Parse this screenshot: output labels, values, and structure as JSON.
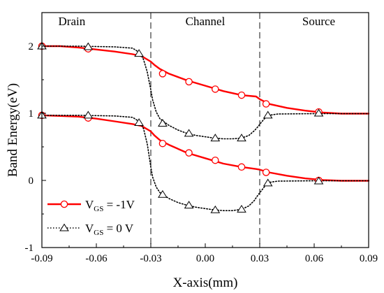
{
  "chart_data": {
    "type": "line",
    "title": "",
    "xlabel": "X-axis(mm)",
    "ylabel": "Band Energy(eV)",
    "xlim": [
      -0.09,
      0.09
    ],
    "ylim": [
      -1,
      2.5
    ],
    "xticks": [
      "-0.09",
      "-0.06",
      "-0.03",
      "0.00",
      "0.03",
      "0.06",
      "0.09"
    ],
    "yticks": [
      "-1",
      "0",
      "1",
      "2"
    ],
    "grid": false,
    "legend_position": "bottom-left",
    "regions": [
      {
        "label": "Drain",
        "x": -0.0735
      },
      {
        "label": "Channel",
        "x": 0.0
      },
      {
        "label": "Source",
        "x": 0.0625
      }
    ],
    "dividers": [
      -0.03,
      0.03
    ],
    "series": [
      {
        "name": "V_GS = -1V",
        "legend_main": "V",
        "legend_sub": "GS",
        "legend_rest": " = -1V",
        "color": "#ff0000",
        "marker": "circle",
        "line_style": "solid",
        "curves": [
          [
            [
              -0.09,
              2.0
            ],
            [
              -0.08,
              2.0
            ],
            [
              -0.07,
              1.98
            ],
            [
              -0.06,
              1.95
            ],
            [
              -0.05,
              1.92
            ],
            [
              -0.04,
              1.88
            ],
            [
              -0.035,
              1.85
            ],
            [
              -0.03,
              1.77
            ],
            [
              -0.028,
              1.72
            ],
            [
              -0.025,
              1.66
            ],
            [
              -0.02,
              1.59
            ],
            [
              -0.01,
              1.49
            ],
            [
              0.0,
              1.41
            ],
            [
              0.01,
              1.33
            ],
            [
              0.02,
              1.27
            ],
            [
              0.028,
              1.25
            ],
            [
              0.03,
              1.21
            ],
            [
              0.035,
              1.14
            ],
            [
              0.045,
              1.08
            ],
            [
              0.055,
              1.04
            ],
            [
              0.065,
              1.01
            ],
            [
              0.075,
              0.995
            ],
            [
              0.09,
              0.995
            ]
          ],
          [
            [
              -0.09,
              0.97
            ],
            [
              -0.08,
              0.96
            ],
            [
              -0.07,
              0.95
            ],
            [
              -0.06,
              0.92
            ],
            [
              -0.05,
              0.88
            ],
            [
              -0.04,
              0.84
            ],
            [
              -0.035,
              0.81
            ],
            [
              -0.03,
              0.73
            ],
            [
              -0.028,
              0.67
            ],
            [
              -0.025,
              0.6
            ],
            [
              -0.02,
              0.53
            ],
            [
              -0.01,
              0.41
            ],
            [
              0.0,
              0.33
            ],
            [
              0.01,
              0.25
            ],
            [
              0.02,
              0.2
            ],
            [
              0.028,
              0.17
            ],
            [
              0.03,
              0.16
            ],
            [
              0.035,
              0.12
            ],
            [
              0.045,
              0.07
            ],
            [
              0.055,
              0.03
            ],
            [
              0.065,
              0.005
            ],
            [
              0.075,
              -0.005
            ],
            [
              0.09,
              -0.005
            ]
          ]
        ],
        "markers": [
          [
            -0.09,
            2.0
          ],
          [
            -0.0645,
            1.96
          ],
          [
            -0.0235,
            1.59
          ],
          [
            -0.009,
            1.47
          ],
          [
            0.0055,
            1.36
          ],
          [
            0.02,
            1.27
          ],
          [
            0.0335,
            1.14
          ],
          [
            0.0625,
            1.02
          ],
          [
            -0.09,
            0.97
          ],
          [
            -0.0645,
            0.93
          ],
          [
            -0.0235,
            0.55
          ],
          [
            -0.009,
            0.41
          ],
          [
            0.0055,
            0.3
          ],
          [
            0.02,
            0.2
          ],
          [
            0.0335,
            0.12
          ],
          [
            0.0625,
            0.0
          ]
        ]
      },
      {
        "name": "V_GS = 0 V",
        "legend_main": "V",
        "legend_sub": "GS",
        "legend_rest": " = 0 V",
        "color": "#000000",
        "marker": "triangle",
        "line_style": "dotted",
        "curves": [
          [
            [
              -0.09,
              2.0
            ],
            [
              -0.07,
              2.0
            ],
            [
              -0.05,
              1.99
            ],
            [
              -0.04,
              1.97
            ],
            [
              -0.036,
              1.9
            ],
            [
              -0.034,
              1.8
            ],
            [
              -0.032,
              1.62
            ],
            [
              -0.03,
              1.35
            ],
            [
              -0.029,
              1.2
            ],
            [
              -0.027,
              1.02
            ],
            [
              -0.025,
              0.92
            ],
            [
              -0.02,
              0.82
            ],
            [
              -0.015,
              0.75
            ],
            [
              -0.01,
              0.7
            ],
            [
              -0.005,
              0.67
            ],
            [
              0.0,
              0.65
            ],
            [
              0.005,
              0.63
            ],
            [
              0.01,
              0.62
            ],
            [
              0.015,
              0.62
            ],
            [
              0.02,
              0.63
            ],
            [
              0.024,
              0.67
            ],
            [
              0.027,
              0.74
            ],
            [
              0.029,
              0.8
            ],
            [
              0.031,
              0.87
            ],
            [
              0.033,
              0.93
            ],
            [
              0.035,
              0.97
            ],
            [
              0.04,
              0.99
            ],
            [
              0.06,
              0.995
            ],
            [
              0.09,
              0.995
            ]
          ],
          [
            [
              -0.09,
              0.97
            ],
            [
              -0.07,
              0.97
            ],
            [
              -0.05,
              0.96
            ],
            [
              -0.04,
              0.94
            ],
            [
              -0.036,
              0.87
            ],
            [
              -0.034,
              0.77
            ],
            [
              -0.032,
              0.55
            ],
            [
              -0.03,
              0.2
            ],
            [
              -0.029,
              0.05
            ],
            [
              -0.027,
              -0.1
            ],
            [
              -0.025,
              -0.18
            ],
            [
              -0.02,
              -0.27
            ],
            [
              -0.015,
              -0.33
            ],
            [
              -0.01,
              -0.37
            ],
            [
              -0.005,
              -0.4
            ],
            [
              0.0,
              -0.42
            ],
            [
              0.005,
              -0.44
            ],
            [
              0.01,
              -0.45
            ],
            [
              0.015,
              -0.45
            ],
            [
              0.02,
              -0.43
            ],
            [
              0.024,
              -0.38
            ],
            [
              0.027,
              -0.3
            ],
            [
              0.029,
              -0.22
            ],
            [
              0.031,
              -0.15
            ],
            [
              0.033,
              -0.08
            ],
            [
              0.035,
              -0.03
            ],
            [
              0.04,
              -0.01
            ],
            [
              0.06,
              -0.005
            ],
            [
              0.09,
              -0.005
            ]
          ]
        ],
        "markers": [
          [
            -0.09,
            2.0
          ],
          [
            -0.0645,
            1.99
          ],
          [
            -0.0365,
            1.89
          ],
          [
            -0.0235,
            0.85
          ],
          [
            -0.009,
            0.7
          ],
          [
            0.0055,
            0.63
          ],
          [
            0.02,
            0.63
          ],
          [
            0.0345,
            0.97
          ],
          [
            0.0625,
            1.0
          ],
          [
            -0.09,
            0.97
          ],
          [
            -0.0645,
            0.97
          ],
          [
            -0.0365,
            0.86
          ],
          [
            -0.0235,
            -0.21
          ],
          [
            -0.009,
            -0.37
          ],
          [
            0.0055,
            -0.44
          ],
          [
            0.02,
            -0.43
          ],
          [
            0.0345,
            -0.04
          ],
          [
            0.0625,
            -0.01
          ]
        ]
      }
    ]
  }
}
